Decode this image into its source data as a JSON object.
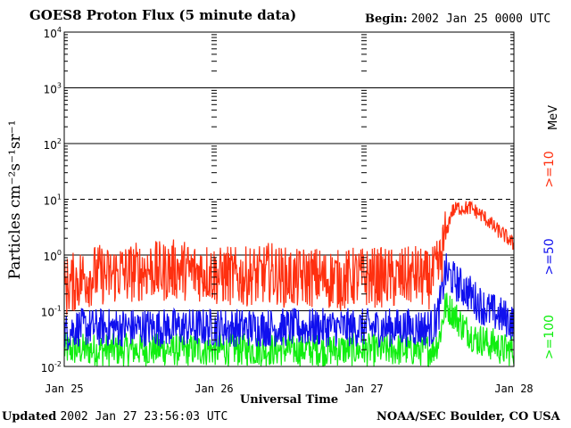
{
  "header": {
    "title": "GOES8 Proton Flux (5 minute data)",
    "begin_label": "Begin:",
    "begin_value": "2002 Jan 25 0000 UTC"
  },
  "footer": {
    "updated_label": "Updated",
    "updated_value": "2002 Jan 27 23:56:03 UTC",
    "credit": "NOAA/SEC Boulder, CO USA"
  },
  "chart_data": {
    "type": "line",
    "title": "GOES8 Proton Flux (5 minute data)",
    "xlabel": "Universal Time",
    "ylabel": "Particles cm⁻²s⁻¹sr⁻¹",
    "yscale": "log",
    "ylim": [
      0.01,
      10000
    ],
    "xlim": [
      0,
      72
    ],
    "x_unit": "hours since 2002 Jan 25 0000 UTC",
    "x_ticks": [
      {
        "x": 0,
        "label": "Jan 25"
      },
      {
        "x": 24,
        "label": "Jan 26"
      },
      {
        "x": 48,
        "label": "Jan 27"
      },
      {
        "x": 72,
        "label": "Jan 28"
      }
    ],
    "y_ticks": [
      {
        "value": 0.01,
        "base": "10",
        "exp": "-2"
      },
      {
        "value": 0.1,
        "base": "10",
        "exp": "-1"
      },
      {
        "value": 1,
        "base": "10",
        "exp": "0"
      },
      {
        "value": 10,
        "base": "10",
        "exp": "1"
      },
      {
        "value": 100,
        "base": "10",
        "exp": "2"
      },
      {
        "value": 1000,
        "base": "10",
        "exp": "3"
      },
      {
        "value": 10000,
        "base": "10",
        "exp": "4"
      }
    ],
    "dashed_levels": [
      10
    ],
    "legend_unit": "MeV",
    "series": [
      {
        "name": ">=10",
        "color": "#ff3010",
        "x": [
          0,
          1,
          2,
          3,
          4,
          5,
          6,
          7,
          8,
          9,
          10,
          11,
          12,
          13,
          14,
          15,
          16,
          17,
          18,
          19,
          20,
          21,
          22,
          23,
          24,
          25,
          26,
          27,
          28,
          29,
          30,
          31,
          32,
          33,
          34,
          35,
          36,
          37,
          38,
          39,
          40,
          41,
          42,
          43,
          44,
          45,
          46,
          47,
          48,
          49,
          50,
          51,
          52,
          53,
          54,
          55,
          56,
          57,
          58,
          59,
          60,
          61,
          62,
          63,
          64,
          65,
          66,
          67,
          68,
          69,
          70,
          71,
          72
        ],
        "values": [
          0.25,
          0.3,
          0.35,
          0.4,
          0.4,
          0.45,
          0.45,
          0.4,
          0.45,
          0.5,
          0.45,
          0.5,
          0.5,
          0.55,
          0.55,
          0.5,
          0.5,
          0.55,
          0.55,
          0.55,
          0.5,
          0.5,
          0.5,
          0.5,
          0.45,
          0.4,
          0.45,
          0.4,
          0.4,
          0.4,
          0.45,
          0.4,
          0.45,
          0.5,
          0.45,
          0.4,
          0.4,
          0.35,
          0.4,
          0.4,
          0.4,
          0.4,
          0.35,
          0.4,
          0.35,
          0.35,
          0.4,
          0.4,
          0.4,
          0.4,
          0.4,
          0.4,
          0.4,
          0.35,
          0.4,
          0.4,
          0.45,
          0.4,
          0.35,
          0.4,
          0.6,
          2.0,
          6.0,
          7.0,
          7.0,
          7.0,
          6.0,
          5.0,
          4.0,
          3.0,
          2.5,
          2.0,
          1.5
        ]
      },
      {
        "name": ">=50",
        "color": "#1010ee",
        "x": [
          0,
          1,
          2,
          3,
          4,
          5,
          6,
          7,
          8,
          9,
          10,
          11,
          12,
          13,
          14,
          15,
          16,
          17,
          18,
          19,
          20,
          21,
          22,
          23,
          24,
          25,
          26,
          27,
          28,
          29,
          30,
          31,
          32,
          33,
          34,
          35,
          36,
          37,
          38,
          39,
          40,
          41,
          42,
          43,
          44,
          45,
          46,
          47,
          48,
          49,
          50,
          51,
          52,
          53,
          54,
          55,
          56,
          57,
          58,
          59,
          60,
          61,
          62,
          63,
          64,
          65,
          66,
          67,
          68,
          69,
          70,
          71,
          72
        ],
        "values": [
          0.04,
          0.045,
          0.05,
          0.05,
          0.05,
          0.05,
          0.05,
          0.05,
          0.05,
          0.05,
          0.05,
          0.05,
          0.05,
          0.05,
          0.05,
          0.05,
          0.05,
          0.05,
          0.05,
          0.05,
          0.05,
          0.05,
          0.05,
          0.05,
          0.05,
          0.05,
          0.05,
          0.05,
          0.05,
          0.05,
          0.05,
          0.05,
          0.05,
          0.05,
          0.05,
          0.05,
          0.05,
          0.05,
          0.05,
          0.05,
          0.05,
          0.05,
          0.05,
          0.05,
          0.05,
          0.05,
          0.05,
          0.05,
          0.05,
          0.05,
          0.05,
          0.05,
          0.05,
          0.05,
          0.05,
          0.05,
          0.05,
          0.05,
          0.05,
          0.05,
          0.1,
          0.5,
          0.4,
          0.3,
          0.25,
          0.2,
          0.15,
          0.12,
          0.1,
          0.09,
          0.08,
          0.07,
          0.06
        ]
      },
      {
        "name": ">=100",
        "color": "#10ee10",
        "x": [
          0,
          1,
          2,
          3,
          4,
          5,
          6,
          7,
          8,
          9,
          10,
          11,
          12,
          13,
          14,
          15,
          16,
          17,
          18,
          19,
          20,
          21,
          22,
          23,
          24,
          25,
          26,
          27,
          28,
          29,
          30,
          31,
          32,
          33,
          34,
          35,
          36,
          37,
          38,
          39,
          40,
          41,
          42,
          43,
          44,
          45,
          46,
          47,
          48,
          49,
          50,
          51,
          52,
          53,
          54,
          55,
          56,
          57,
          58,
          59,
          60,
          61,
          62,
          63,
          64,
          65,
          66,
          67,
          68,
          69,
          70,
          71,
          72
        ],
        "values": [
          0.02,
          0.02,
          0.02,
          0.02,
          0.02,
          0.02,
          0.02,
          0.02,
          0.02,
          0.02,
          0.02,
          0.02,
          0.02,
          0.02,
          0.02,
          0.02,
          0.02,
          0.02,
          0.02,
          0.02,
          0.02,
          0.02,
          0.02,
          0.02,
          0.02,
          0.02,
          0.02,
          0.02,
          0.02,
          0.02,
          0.02,
          0.02,
          0.02,
          0.02,
          0.02,
          0.02,
          0.02,
          0.02,
          0.02,
          0.02,
          0.02,
          0.02,
          0.02,
          0.02,
          0.02,
          0.02,
          0.02,
          0.02,
          0.02,
          0.02,
          0.02,
          0.02,
          0.02,
          0.02,
          0.02,
          0.02,
          0.02,
          0.02,
          0.02,
          0.02,
          0.03,
          0.12,
          0.1,
          0.07,
          0.05,
          0.04,
          0.03,
          0.03,
          0.025,
          0.025,
          0.02,
          0.02,
          0.02
        ]
      }
    ]
  }
}
